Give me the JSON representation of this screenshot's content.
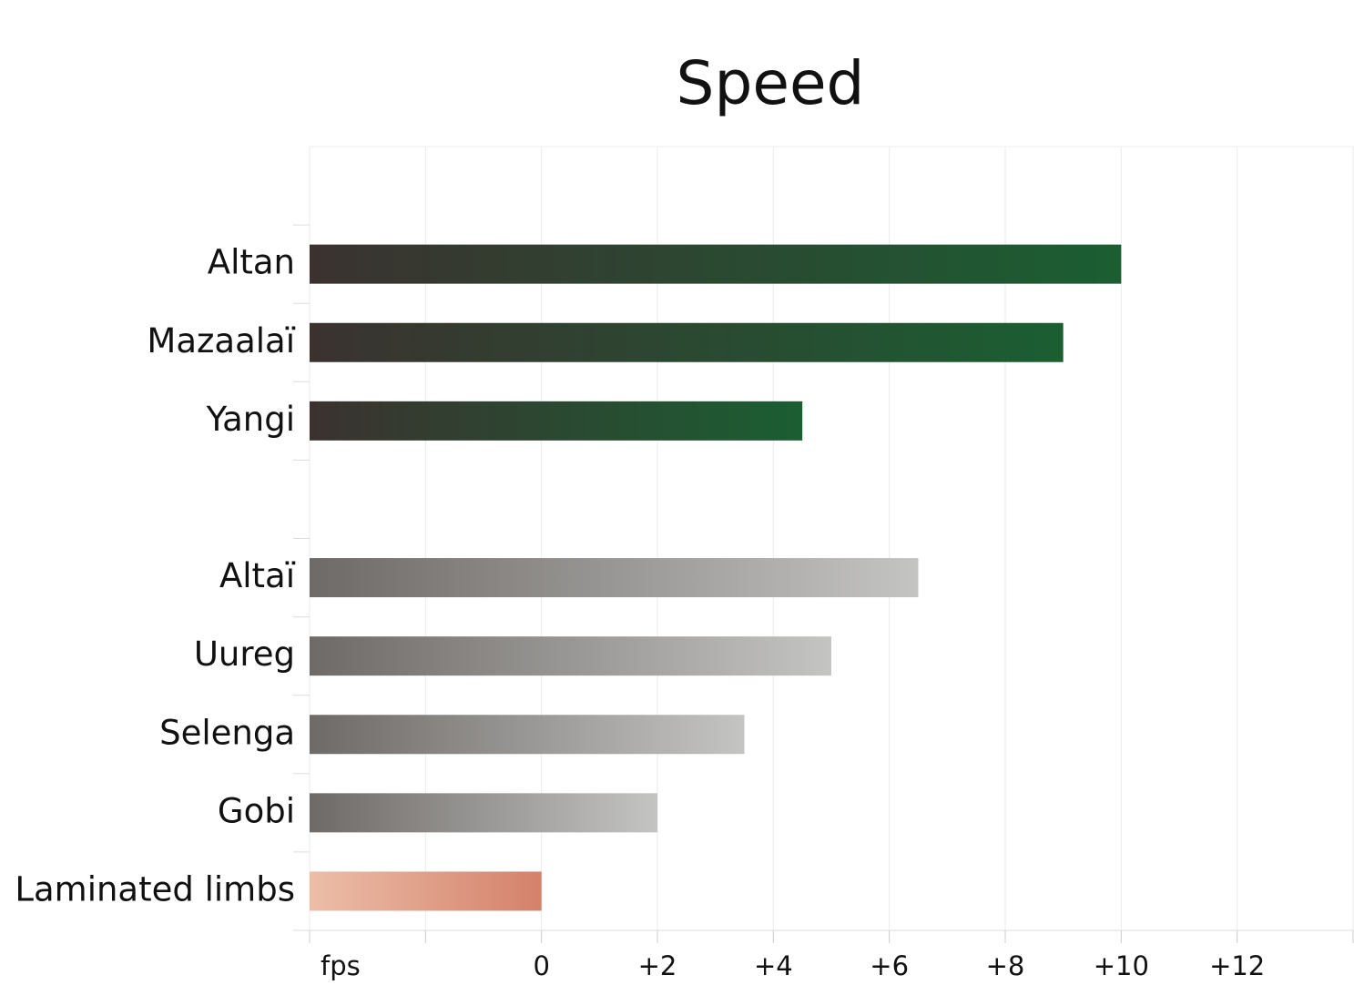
{
  "chart_data": {
    "type": "barh",
    "title": "Speed",
    "categories": [
      null,
      "Altan",
      "Mazaalaï",
      "Yangi",
      null,
      "Altaï",
      "Uureg",
      "Selenga",
      "Gobi",
      "Laminated limbs"
    ],
    "values": [
      null,
      10,
      9,
      4.5,
      null,
      6.5,
      5,
      3.5,
      2,
      0
    ],
    "colors": [
      null,
      [
        "#3b3230",
        "#1b5e32"
      ],
      [
        "#3b3230",
        "#1b5e32"
      ],
      [
        "#3b3230",
        "#1b5e32"
      ],
      null,
      [
        "#6e6a67",
        "#c4c4c3"
      ],
      [
        "#6e6a67",
        "#c4c4c3"
      ],
      [
        "#6e6a67",
        "#c4c4c3"
      ],
      [
        "#6e6a67",
        "#c4c4c3"
      ],
      [
        "#ecbea8",
        "#d4816a"
      ]
    ],
    "xlim": [
      -4,
      14
    ],
    "xticks": [
      {
        "value": -4,
        "label": "fps"
      },
      {
        "value": -2
      },
      0,
      {
        "value": 2,
        "label": "+2"
      },
      {
        "value": 4,
        "label": "+4"
      },
      {
        "value": 6,
        "label": "+6"
      },
      {
        "value": 8,
        "label": "+8"
      },
      {
        "value": 10,
        "label": "+10"
      },
      {
        "value": 12,
        "label": "+12"
      },
      {
        "value": 14
      }
    ],
    "grid": true
  }
}
